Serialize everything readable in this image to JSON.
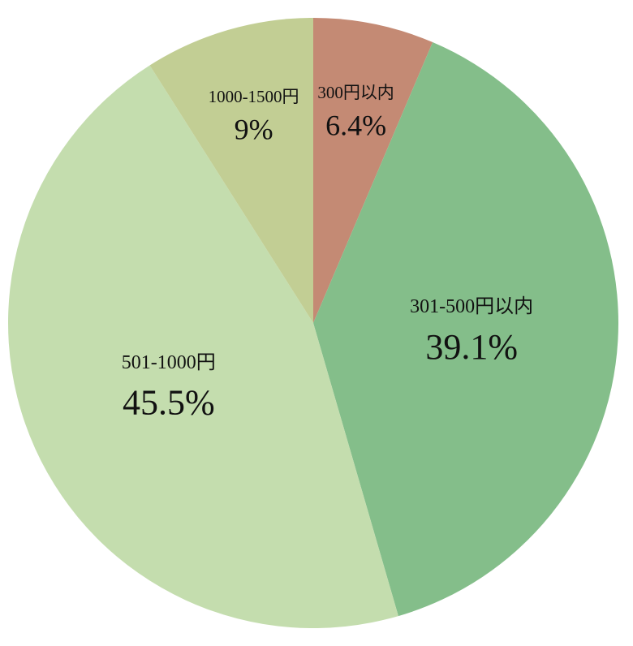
{
  "chart_data": {
    "type": "pie",
    "categories": [
      "300円以内",
      "301-500円以内",
      "501-1000円",
      "1000-1500円"
    ],
    "values": [
      6.4,
      39.1,
      45.5,
      9
    ],
    "value_labels": [
      "6.4%",
      "39.1%",
      "45.5%",
      "9%"
    ],
    "colors": [
      "#c48a74",
      "#84be8a",
      "#c4ddae",
      "#c2ce94"
    ]
  }
}
